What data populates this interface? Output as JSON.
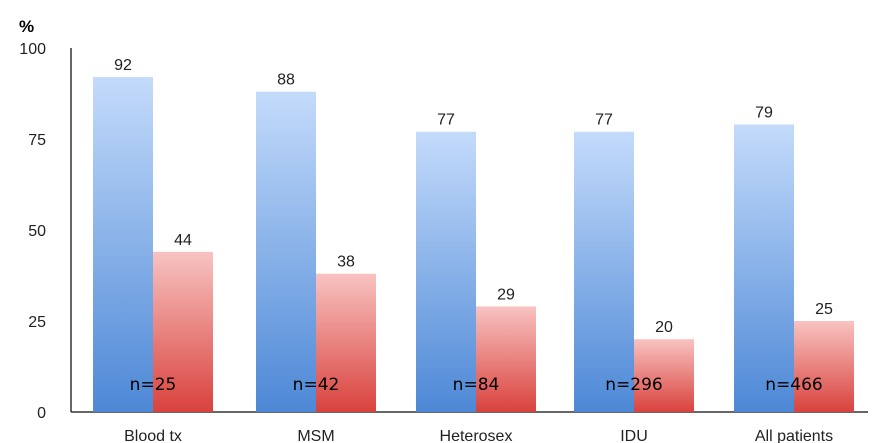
{
  "chart_data": {
    "type": "bar",
    "ylabel": "%",
    "ylim": [
      0,
      100
    ],
    "yticks": [
      0,
      25,
      50,
      75,
      100
    ],
    "categories": [
      "Blood tx",
      "MSM",
      "Heterosex",
      "IDU",
      "All patients"
    ],
    "series": [
      {
        "values": [
          92,
          88,
          77,
          77,
          79
        ],
        "color": "#5b93dd"
      },
      {
        "values": [
          44,
          38,
          29,
          20,
          25
        ],
        "color": "#e25a55"
      }
    ],
    "n_labels": [
      "n=25",
      "n=42",
      "n=84",
      "n=296",
      "n=466"
    ],
    "grid": false,
    "legend": "none"
  }
}
